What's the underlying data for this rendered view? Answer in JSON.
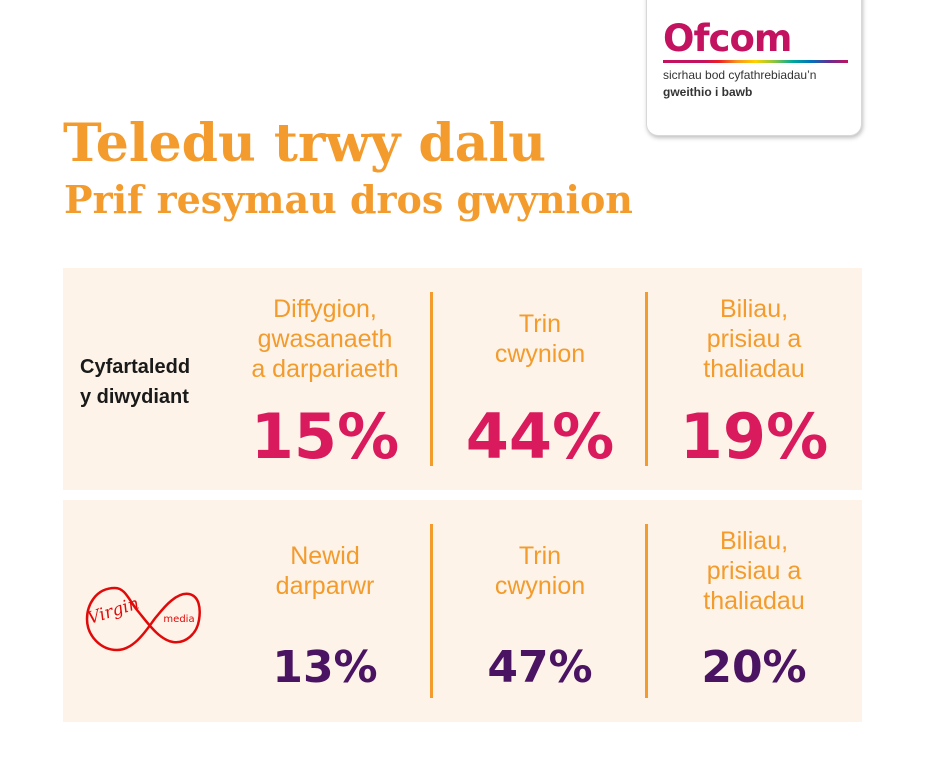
{
  "logo": {
    "brand": "Ofcom",
    "tagline_line1": "sicrhau bod cyfathrebiadau’n",
    "tagline_line2": "gweithio i bawb",
    "brand_color": "#c3125f"
  },
  "heading": {
    "title": "Teledu trwy dalu",
    "subtitle": "Prif resymau dros gwynion",
    "accent_color": "#f39b2c"
  },
  "rows": [
    {
      "label_line1": "Cyfartaledd",
      "label_line2": "y diwydiant",
      "value_color": "#d91a5c",
      "items": [
        {
          "category": [
            "Diffygion,",
            "gwasanaeth",
            "a darpariaeth"
          ],
          "value": "15%"
        },
        {
          "category": [
            "Trin",
            "cwynion"
          ],
          "value": "44%"
        },
        {
          "category": [
            "Biliau,",
            "prisiau a",
            "thaliadau"
          ],
          "value": "19%"
        }
      ]
    },
    {
      "provider_logo": "virgin-media-logo",
      "provider_logo_text": [
        "Virgin",
        "media"
      ],
      "logo_color": "#e10a0a",
      "value_color": "#4b1463",
      "items": [
        {
          "category": [
            "Newid",
            "darparwr"
          ],
          "value": "13%"
        },
        {
          "category": [
            "Trin",
            "cwynion"
          ],
          "value": "47%"
        },
        {
          "category": [
            "Biliau,",
            "prisiau a",
            "thaliadau"
          ],
          "value": "20%"
        }
      ]
    }
  ]
}
